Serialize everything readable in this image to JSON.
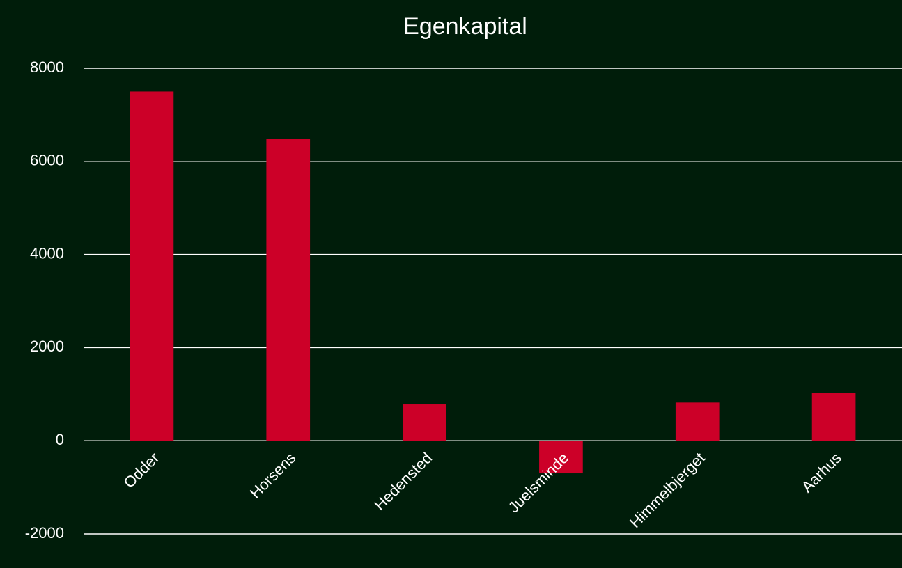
{
  "chart_data": {
    "type": "bar",
    "title": "Egenkapital",
    "categories": [
      "Odder",
      "Horsens",
      "Hedensted",
      "Juelsminde",
      "Himmelbjerget",
      "Aarhus"
    ],
    "values": [
      7500,
      6480,
      780,
      -700,
      820,
      1020
    ],
    "color": "#cc0028",
    "ylim": [
      -2000,
      8000
    ],
    "yticks": [
      -2000,
      0,
      2000,
      4000,
      6000,
      8000
    ],
    "grid": true
  }
}
